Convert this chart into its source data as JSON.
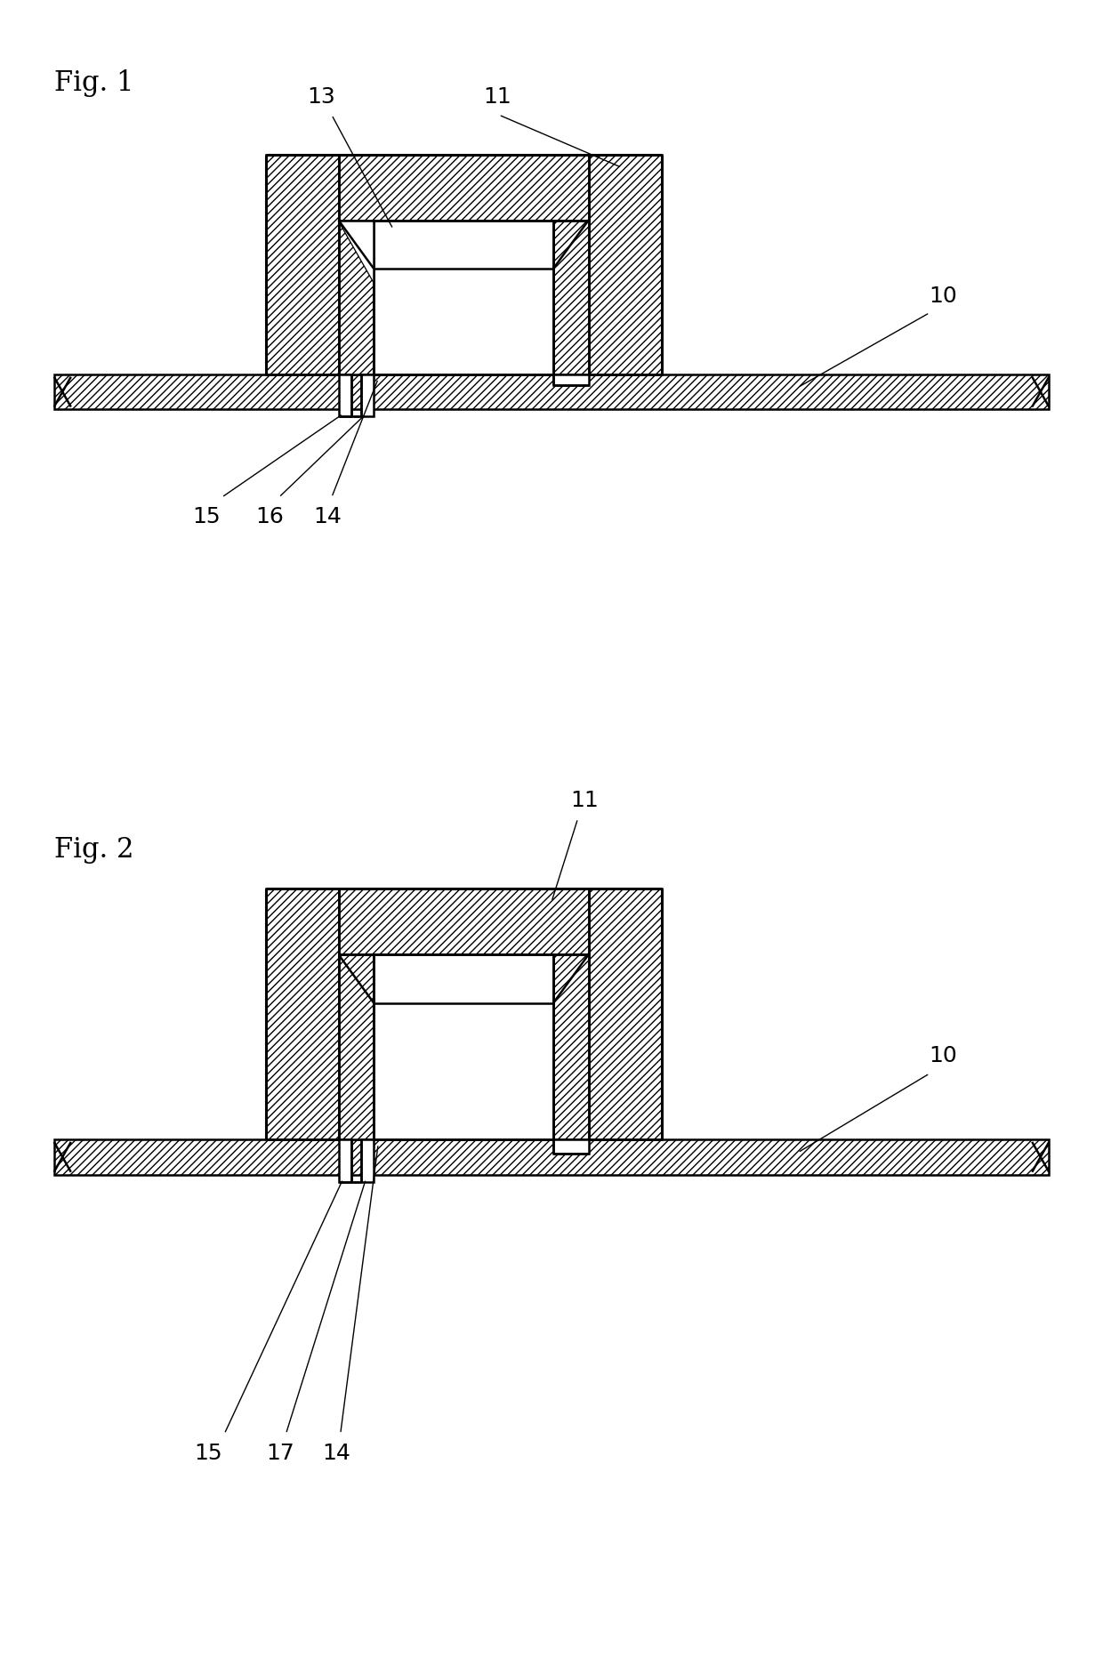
{
  "bg_color": "#ffffff",
  "line_color": "#000000",
  "fig1_label": "Fig. 1",
  "fig2_label": "Fig. 2",
  "label_fontsize": 22,
  "ref_fontsize": 18
}
